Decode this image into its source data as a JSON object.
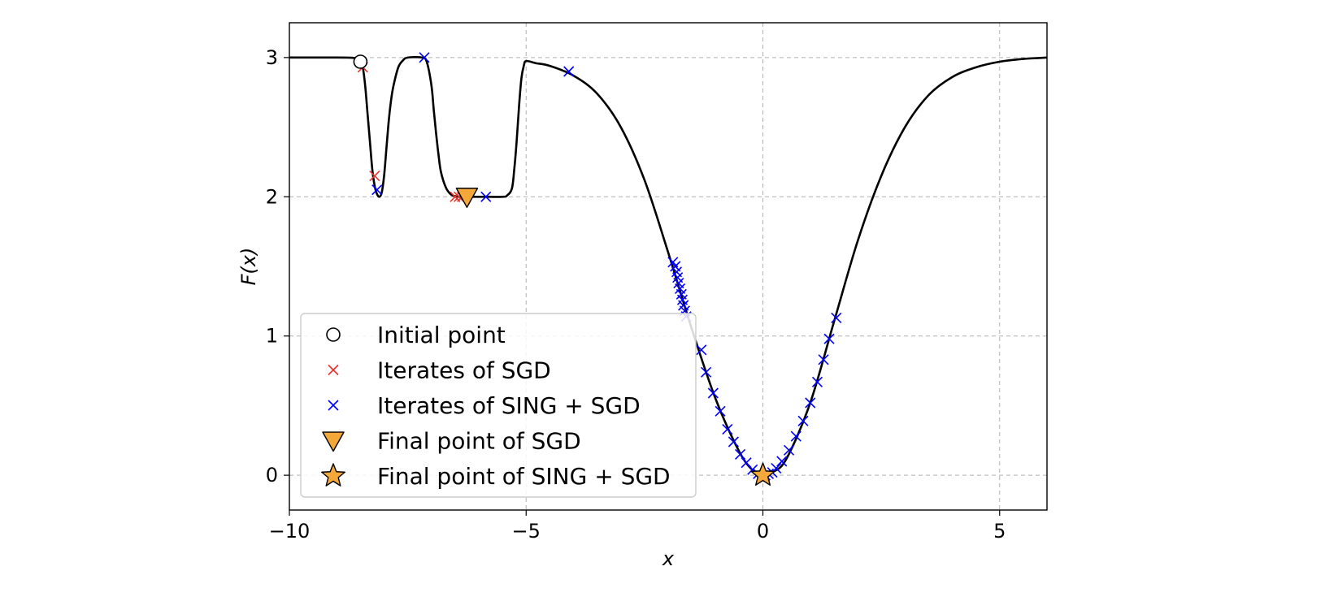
{
  "chart_data": {
    "type": "line",
    "xlabel": "x",
    "ylabel": "F(x)",
    "xlim": [
      -10,
      6
    ],
    "ylim": [
      -0.25,
      3.25
    ],
    "xticks": [
      -10,
      -5,
      0,
      5
    ],
    "xtick_labels": [
      "−10",
      "−5",
      "0",
      "5"
    ],
    "yticks": [
      0,
      1,
      2,
      3
    ],
    "ytick_labels": [
      "0",
      "1",
      "2",
      "3"
    ],
    "grid": true,
    "legend_position": "lower-left",
    "colors": {
      "curve": "#000000",
      "sgd": "#e8332a",
      "sing": "#0000ff",
      "final": "#f4a83a",
      "grid": "#b0b0b0"
    },
    "curve": {
      "name": "F(x)",
      "points": [
        [
          -10,
          3
        ],
        [
          -9.0,
          3
        ],
        [
          -8.7,
          2.999
        ],
        [
          -8.6,
          2.995
        ],
        [
          -8.55,
          2.985
        ],
        [
          -8.5,
          2.97
        ],
        [
          -8.45,
          2.93
        ],
        [
          -8.4,
          2.8
        ],
        [
          -8.35,
          2.6
        ],
        [
          -8.3,
          2.4
        ],
        [
          -8.25,
          2.2
        ],
        [
          -8.2,
          2.08
        ],
        [
          -8.15,
          2.02
        ],
        [
          -8.1,
          2.0
        ],
        [
          -8.05,
          2.03
        ],
        [
          -8.0,
          2.15
        ],
        [
          -7.95,
          2.35
        ],
        [
          -7.9,
          2.55
        ],
        [
          -7.85,
          2.7
        ],
        [
          -7.8,
          2.8
        ],
        [
          -7.7,
          2.93
        ],
        [
          -7.6,
          2.98
        ],
        [
          -7.5,
          3.0
        ],
        [
          -7.2,
          3.0
        ],
        [
          -7.1,
          2.97
        ],
        [
          -7.0,
          2.8
        ],
        [
          -6.95,
          2.62
        ],
        [
          -6.9,
          2.45
        ],
        [
          -6.85,
          2.3
        ],
        [
          -6.8,
          2.18
        ],
        [
          -6.7,
          2.07
        ],
        [
          -6.6,
          2.02
        ],
        [
          -6.5,
          2.005
        ],
        [
          -6.3,
          2.0
        ],
        [
          -6.0,
          2.0
        ],
        [
          -5.5,
          2.0
        ],
        [
          -5.4,
          2.01
        ],
        [
          -5.3,
          2.06
        ],
        [
          -5.25,
          2.2
        ],
        [
          -5.2,
          2.4
        ],
        [
          -5.15,
          2.65
        ],
        [
          -5.1,
          2.85
        ],
        [
          -5.05,
          2.94
        ],
        [
          -5.0,
          2.975
        ],
        [
          -4.8,
          2.96
        ],
        [
          -4.5,
          2.94
        ],
        [
          -4.0,
          2.87
        ],
        [
          -3.5,
          2.74
        ],
        [
          -3.0,
          2.5
        ],
        [
          -2.5,
          2.12
        ],
        [
          -2.0,
          1.6
        ],
        [
          -1.5,
          1.05
        ],
        [
          -1.0,
          0.55
        ],
        [
          -0.5,
          0.17
        ],
        [
          -0.2,
          0.03
        ],
        [
          0,
          0
        ],
        [
          0.2,
          0.02
        ],
        [
          0.5,
          0.12
        ],
        [
          1.0,
          0.52
        ],
        [
          1.5,
          1.1
        ],
        [
          2.0,
          1.68
        ],
        [
          2.5,
          2.15
        ],
        [
          3.0,
          2.5
        ],
        [
          3.5,
          2.73
        ],
        [
          4.0,
          2.86
        ],
        [
          4.5,
          2.93
        ],
        [
          5.0,
          2.97
        ],
        [
          5.5,
          2.99
        ],
        [
          6.0,
          3.0
        ]
      ]
    },
    "series": [
      {
        "name": "Iterates of SGD",
        "marker": "x",
        "x": [
          -8.45,
          -8.2,
          -6.5,
          -6.42,
          -6.35
        ],
        "y": [
          2.93,
          2.15,
          2.0,
          2.0,
          2.0
        ]
      },
      {
        "name": "Iterates of SING + SGD",
        "marker": "x",
        "x": [
          -8.15,
          -7.15,
          -5.85,
          -4.1,
          -1.9,
          -1.85,
          -1.82,
          -1.8,
          -1.78,
          -1.75,
          -1.72,
          -1.7,
          -1.68,
          -1.65,
          -1.62,
          -1.3,
          -1.2,
          -1.05,
          -0.9,
          -0.75,
          -0.62,
          -0.48,
          -0.35,
          -0.22,
          -0.1,
          0.05,
          0.12,
          0.2,
          0.28,
          0.4,
          0.55,
          0.7,
          0.85,
          1.0,
          1.15,
          1.28,
          1.4,
          1.55
        ],
        "y": [
          2.05,
          3.0,
          2.0,
          2.9,
          1.53,
          1.5,
          1.46,
          1.42,
          1.38,
          1.34,
          1.3,
          1.26,
          1.22,
          1.18,
          1.14,
          0.9,
          0.74,
          0.59,
          0.46,
          0.33,
          0.24,
          0.15,
          0.09,
          0.04,
          0.01,
          0.0,
          0.01,
          0.02,
          0.05,
          0.1,
          0.18,
          0.28,
          0.39,
          0.52,
          0.67,
          0.83,
          0.98,
          1.13
        ]
      },
      {
        "name": "Initial point",
        "marker": "circle",
        "x": [
          -8.5
        ],
        "y": [
          2.97
        ]
      },
      {
        "name": "Final point of SGD",
        "marker": "triangle-down",
        "x": [
          -6.25
        ],
        "y": [
          2.0
        ]
      },
      {
        "name": "Final point of SING + SGD",
        "marker": "star",
        "x": [
          0.0
        ],
        "y": [
          0.0
        ]
      }
    ],
    "legend": [
      {
        "label": "Initial point",
        "marker": "circle"
      },
      {
        "label": "Iterates of SGD",
        "marker": "x-red"
      },
      {
        "label": "Iterates of SING + SGD",
        "marker": "x-blue"
      },
      {
        "label": "Final point of SGD",
        "marker": "triangle-down"
      },
      {
        "label": "Final point of SING + SGD",
        "marker": "star"
      }
    ]
  }
}
